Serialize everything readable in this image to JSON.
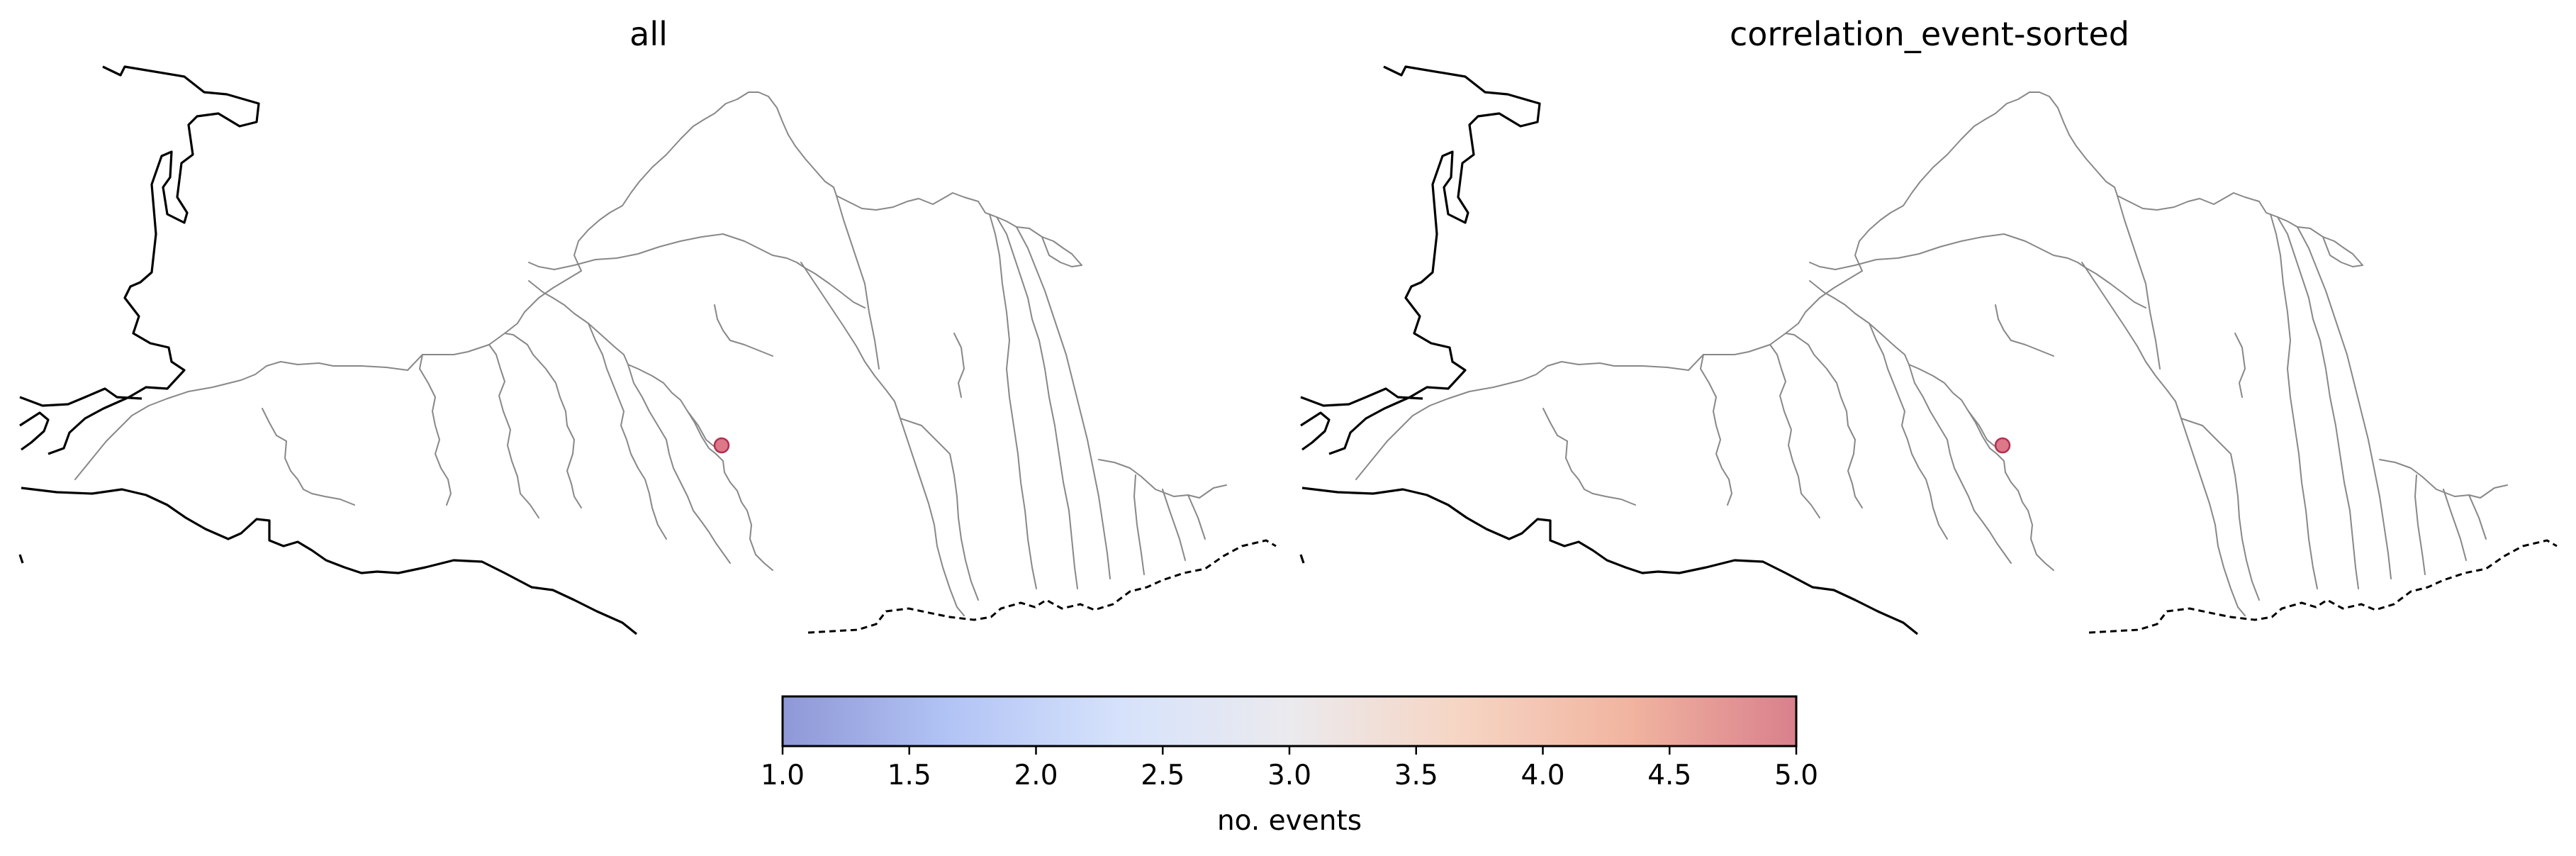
{
  "figure": {
    "panels": [
      {
        "title": "all",
        "stations": [
          {
            "name": "station",
            "events": 5.0
          }
        ]
      },
      {
        "title": "correlation_event-sorted",
        "stations": [
          {
            "name": "station",
            "events": 5.0
          }
        ]
      }
    ]
  },
  "colorbar": {
    "label": "no. events",
    "range": [
      1.0,
      5.0
    ],
    "ticks": [
      "1.0",
      "1.5",
      "2.0",
      "2.5",
      "3.0",
      "3.5",
      "4.0",
      "4.5",
      "5.0"
    ],
    "colors": [
      "#8f98d6",
      "#b2c4f5",
      "#d6e2fb",
      "#ebeaee",
      "#f6d5c4",
      "#f1b5a0",
      "#d9808c"
    ]
  },
  "style": {
    "station_color": "#d66073",
    "river_color": "#888888",
    "coast_color": "#000000"
  }
}
